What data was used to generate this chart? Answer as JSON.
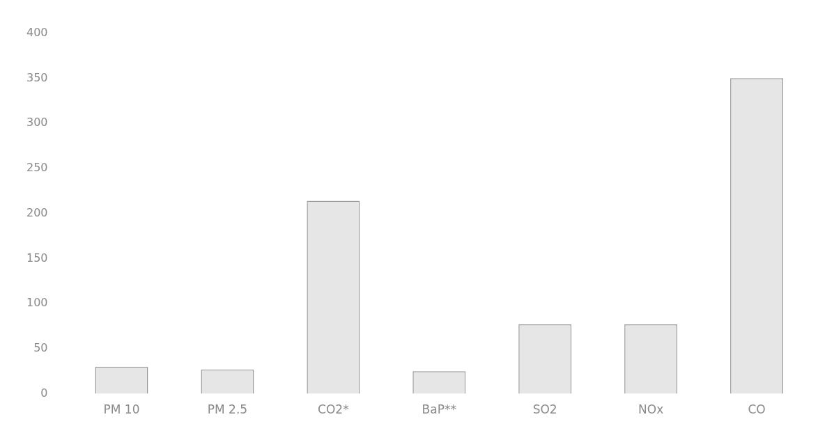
{
  "chart_data": {
    "type": "bar",
    "categories": [
      "PM 10",
      "PM 2.5",
      "CO2*",
      "BaP**",
      "SO2",
      "NOx",
      "CO"
    ],
    "values": [
      30,
      27,
      214,
      25,
      77,
      77,
      350
    ],
    "color": "#e6e6e6",
    "ylim": [
      0,
      400
    ],
    "yticks": [
      0,
      50,
      100,
      150,
      200,
      250,
      300,
      350,
      400
    ],
    "grid": false
  }
}
